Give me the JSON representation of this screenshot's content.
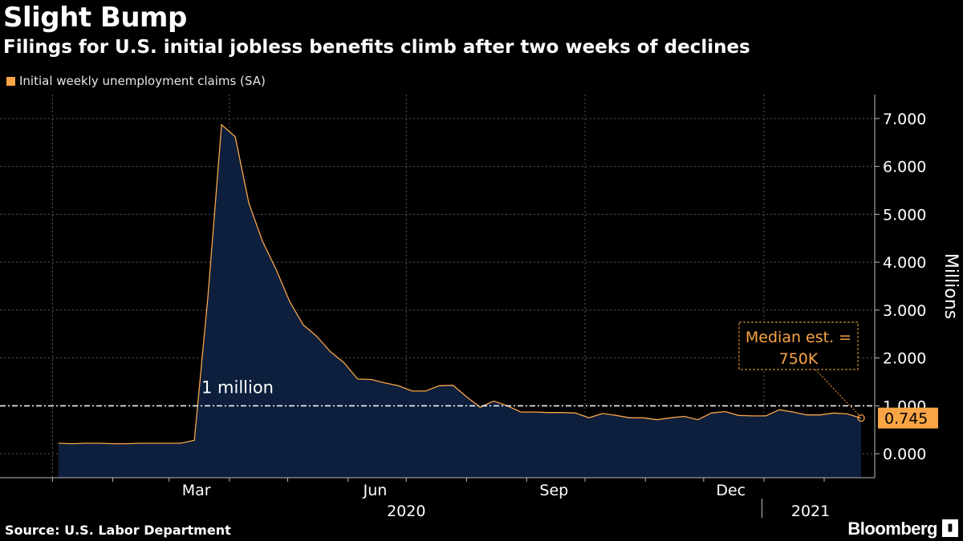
{
  "title": "Slight Bump",
  "subtitle": "Filings for U.S. initial jobless benefits climb after two weeks of declines",
  "legend": {
    "label": "Initial weekly unemployment claims (SA)",
    "color": "#f9a546"
  },
  "footer": {
    "source": "Source: U.S. Labor Department",
    "brand": "Bloomberg"
  },
  "colors": {
    "line": "#f9a546",
    "area": "#0d1f3c",
    "grid": "#5a5a5a",
    "text": "#ffffff"
  },
  "chart_data": {
    "type": "area",
    "ylabel": "Millions",
    "ylim": [
      -0.5,
      7.5
    ],
    "yticks": [
      0,
      1,
      2,
      3,
      4,
      5,
      6,
      7
    ],
    "ytick_labels": [
      "0.000",
      "1.000",
      "2.000",
      "3.000",
      "4.000",
      "5.000",
      "6.000",
      "7.000"
    ],
    "x_month_ticks": [
      "Mar",
      "Jun",
      "Sep",
      "Dec"
    ],
    "x_year_labels": [
      "2020",
      "2021"
    ],
    "series": [
      {
        "name": "Initial weekly unemployment claims (SA)",
        "x": [
          "2020-01-04",
          "2020-01-11",
          "2020-01-18",
          "2020-01-25",
          "2020-02-01",
          "2020-02-08",
          "2020-02-15",
          "2020-02-22",
          "2020-02-29",
          "2020-03-07",
          "2020-03-14",
          "2020-03-21",
          "2020-03-28",
          "2020-04-04",
          "2020-04-11",
          "2020-04-18",
          "2020-04-25",
          "2020-05-02",
          "2020-05-09",
          "2020-05-16",
          "2020-05-23",
          "2020-05-30",
          "2020-06-06",
          "2020-06-13",
          "2020-06-20",
          "2020-06-27",
          "2020-07-04",
          "2020-07-11",
          "2020-07-18",
          "2020-07-25",
          "2020-08-01",
          "2020-08-08",
          "2020-08-15",
          "2020-08-22",
          "2020-08-29",
          "2020-09-05",
          "2020-09-12",
          "2020-09-19",
          "2020-09-26",
          "2020-10-03",
          "2020-10-10",
          "2020-10-17",
          "2020-10-24",
          "2020-10-31",
          "2020-11-07",
          "2020-11-14",
          "2020-11-21",
          "2020-11-28",
          "2020-12-05",
          "2020-12-12",
          "2020-12-19",
          "2020-12-26",
          "2021-01-02",
          "2021-01-09",
          "2021-01-16",
          "2021-01-23",
          "2021-01-30",
          "2021-02-06",
          "2021-02-13",
          "2021-02-20"
        ],
        "values": [
          0.22,
          0.21,
          0.22,
          0.22,
          0.21,
          0.21,
          0.22,
          0.22,
          0.22,
          0.22,
          0.28,
          3.3,
          6.87,
          6.62,
          5.24,
          4.44,
          3.85,
          3.18,
          2.69,
          2.45,
          2.13,
          1.9,
          1.56,
          1.55,
          1.48,
          1.42,
          1.31,
          1.31,
          1.42,
          1.43,
          1.19,
          0.97,
          1.1,
          1.0,
          0.87,
          0.87,
          0.86,
          0.86,
          0.85,
          0.75,
          0.84,
          0.8,
          0.75,
          0.75,
          0.71,
          0.75,
          0.78,
          0.71,
          0.85,
          0.88,
          0.8,
          0.79,
          0.79,
          0.92,
          0.87,
          0.81,
          0.81,
          0.85,
          0.83,
          0.745
        ]
      }
    ],
    "reference_line": {
      "value": 1.0,
      "label": "1 million"
    },
    "last_value_label": "0.745",
    "annotation": {
      "text_line1": "Median est. =",
      "text_line2": "750K",
      "value": 0.75
    }
  }
}
